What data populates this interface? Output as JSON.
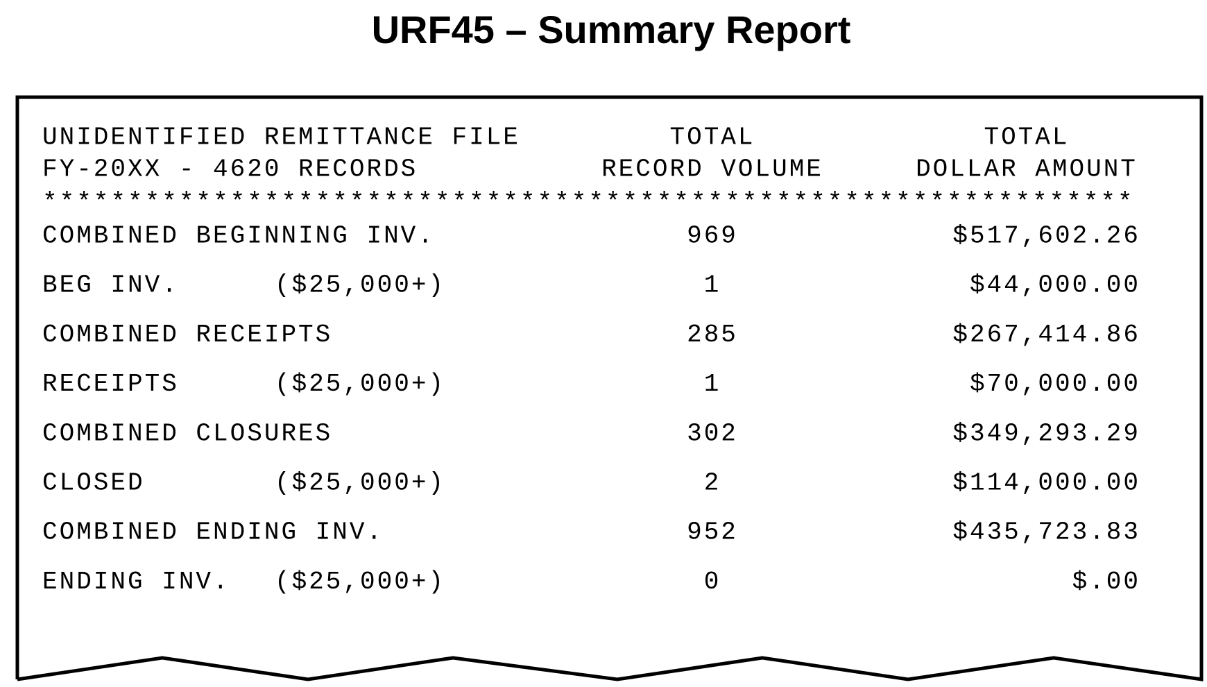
{
  "title": "URF45 – Summary Report",
  "report": {
    "header": {
      "left": [
        "UNIDENTIFIED REMITTANCE FILE",
        "FY-20XX - 4620 RECORDS"
      ],
      "volume": [
        "TOTAL",
        "RECORD VOLUME"
      ],
      "amount": [
        "TOTAL",
        "DOLLAR AMOUNT"
      ]
    },
    "separator": "****************************************************************",
    "rows": [
      {
        "label": "COMBINED BEGINNING INV.",
        "volume": "969",
        "amount": "$517,602.26"
      },
      {
        "label": "BEG INV.",
        "qualifier": "($25,000+)",
        "volume": "1",
        "amount": "$44,000.00"
      },
      {
        "label": "COMBINED RECEIPTS",
        "volume": "285",
        "amount": "$267,414.86"
      },
      {
        "label": "RECEIPTS",
        "qualifier": "($25,000+)",
        "volume": "1",
        "amount": "$70,000.00"
      },
      {
        "label": "COMBINED CLOSURES",
        "volume": "302",
        "amount": "$349,293.29"
      },
      {
        "label": "CLOSED",
        "qualifier": "($25,000+)",
        "volume": "2",
        "amount": "$114,000.00"
      },
      {
        "label": "COMBINED ENDING INV.",
        "volume": "952",
        "amount": "$435,723.83"
      },
      {
        "label": "ENDING INV.",
        "qualifier": "($25,000+)",
        "volume": "0",
        "amount": "$.00"
      }
    ]
  }
}
